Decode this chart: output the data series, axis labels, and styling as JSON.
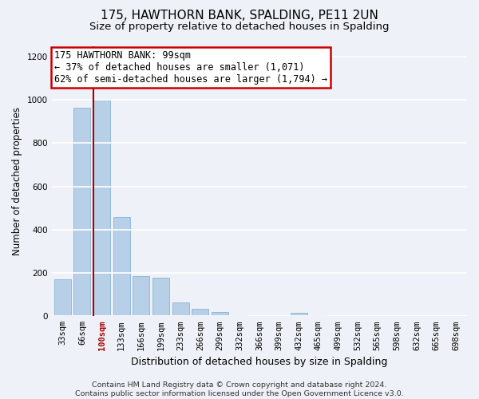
{
  "title1": "175, HAWTHORN BANK, SPALDING, PE11 2UN",
  "title2": "Size of property relative to detached houses in Spalding",
  "xlabel": "Distribution of detached houses by size in Spalding",
  "ylabel": "Number of detached properties",
  "categories": [
    "33sqm",
    "66sqm",
    "100sqm",
    "133sqm",
    "166sqm",
    "199sqm",
    "233sqm",
    "266sqm",
    "299sqm",
    "332sqm",
    "366sqm",
    "399sqm",
    "432sqm",
    "465sqm",
    "499sqm",
    "532sqm",
    "565sqm",
    "598sqm",
    "632sqm",
    "665sqm",
    "698sqm"
  ],
  "values": [
    170,
    965,
    1000,
    460,
    185,
    180,
    65,
    35,
    18,
    5,
    0,
    0,
    15,
    5,
    0,
    0,
    0,
    0,
    0,
    0,
    0
  ],
  "bar_color": "#b8cfe8",
  "bar_edge_color": "#7aaad0",
  "highlight_bar_index": 2,
  "highlight_line_color": "#aa0000",
  "annotation_text": "175 HAWTHORN BANK: 99sqm\n← 37% of detached houses are smaller (1,071)\n62% of semi-detached houses are larger (1,794) →",
  "annotation_box_facecolor": "#ffffff",
  "annotation_box_edgecolor": "#cc0000",
  "footnote": "Contains HM Land Registry data © Crown copyright and database right 2024.\nContains public sector information licensed under the Open Government Licence v3.0.",
  "background_color": "#eef2f8",
  "plot_background_color": "#eef2f8",
  "grid_color": "#ffffff",
  "ylim": [
    0,
    1250
  ],
  "yticks": [
    0,
    200,
    400,
    600,
    800,
    1000,
    1200
  ],
  "title1_fontsize": 11,
  "title2_fontsize": 9.5,
  "xlabel_fontsize": 9,
  "ylabel_fontsize": 8.5,
  "tick_fontsize": 7.5,
  "annotation_fontsize": 8.5,
  "footnote_fontsize": 6.8
}
